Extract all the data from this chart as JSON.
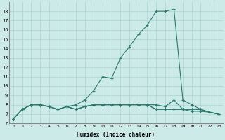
{
  "xlabel": "Humidex (Indice chaleur)",
  "x": [
    0,
    1,
    2,
    3,
    4,
    5,
    6,
    7,
    8,
    9,
    10,
    11,
    12,
    13,
    14,
    15,
    16,
    17,
    18,
    19,
    20,
    21,
    22,
    23
  ],
  "line1": [
    6.5,
    7.5,
    8.0,
    8.0,
    7.8,
    7.5,
    7.8,
    8.0,
    8.5,
    9.5,
    11.0,
    10.8,
    13.0,
    14.2,
    15.5,
    16.5,
    18.0,
    18.0,
    18.2,
    8.5,
    8.0,
    7.5,
    7.2,
    7.0
  ],
  "line2": [
    6.5,
    7.5,
    8.0,
    8.0,
    7.8,
    7.5,
    7.8,
    7.5,
    7.8,
    8.0,
    8.0,
    8.0,
    8.0,
    8.0,
    8.0,
    8.0,
    8.0,
    7.8,
    8.5,
    7.5,
    7.5,
    7.5,
    7.2,
    7.0
  ],
  "line3": [
    6.5,
    7.5,
    8.0,
    8.0,
    7.8,
    7.5,
    7.8,
    7.5,
    7.8,
    8.0,
    8.0,
    8.0,
    8.0,
    8.0,
    8.0,
    8.0,
    7.5,
    7.5,
    7.5,
    7.5,
    7.5,
    7.5,
    7.2,
    7.0
  ],
  "line4": [
    6.5,
    7.5,
    8.0,
    8.0,
    7.8,
    7.5,
    7.8,
    7.5,
    7.8,
    8.0,
    8.0,
    8.0,
    8.0,
    8.0,
    8.0,
    8.0,
    7.5,
    7.5,
    7.5,
    7.5,
    7.3,
    7.3,
    7.2,
    7.0
  ],
  "color": "#2d7a6e",
  "bg_color": "#cceae8",
  "grid_color": "#aad4d0",
  "ylim": [
    6,
    19
  ],
  "xlim": [
    -0.5,
    23.5
  ],
  "yticks": [
    6,
    7,
    8,
    9,
    10,
    11,
    12,
    13,
    14,
    15,
    16,
    17,
    18
  ],
  "xticks": [
    0,
    1,
    2,
    3,
    4,
    5,
    6,
    7,
    8,
    9,
    10,
    11,
    12,
    13,
    14,
    15,
    16,
    17,
    18,
    19,
    20,
    21,
    22,
    23
  ]
}
